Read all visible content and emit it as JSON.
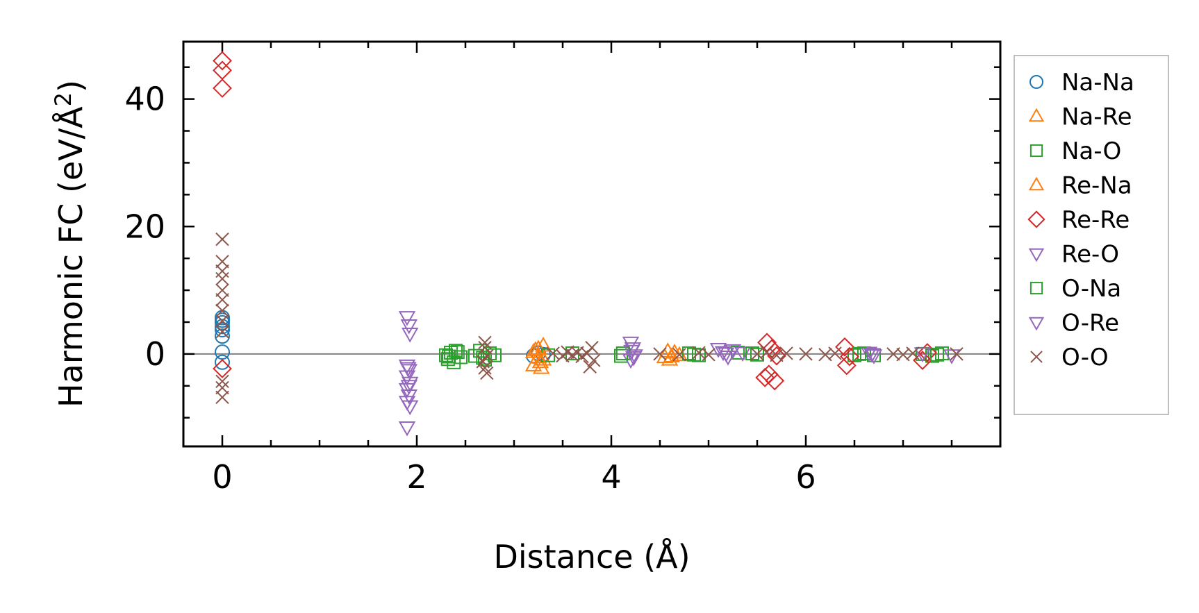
{
  "chart_data": {
    "type": "scatter",
    "xlabel": "Distance (Å)",
    "ylabel_main": "Harmonic FC (eV/Å",
    "ylabel_sup": "2",
    "ylabel_close": ")",
    "xlim": [
      -0.4,
      8.0
    ],
    "ylim": [
      -14.5,
      49.0
    ],
    "xticks": [
      0,
      2,
      4,
      6
    ],
    "yticks": [
      0,
      20,
      40
    ],
    "xminor_step": 0.5,
    "yminor_step": 5,
    "zero_line": true,
    "grid": false,
    "legend_position": "right-outside",
    "series": [
      {
        "name": "Na-Na",
        "marker": "circle",
        "color": "#1f77b4",
        "points": [
          [
            0,
            -1.3
          ],
          [
            0,
            0.3
          ],
          [
            0,
            2.8
          ],
          [
            0,
            3.8
          ],
          [
            0,
            4.3
          ],
          [
            0,
            4.9
          ],
          [
            0,
            5.3
          ],
          [
            0,
            5.7
          ],
          [
            3.2,
            -0.3
          ],
          [
            3.25,
            0.1
          ],
          [
            3.3,
            -0.1
          ]
        ]
      },
      {
        "name": "Na-Re",
        "marker": "triangle-up",
        "color": "#ff7f0e",
        "points": [
          [
            3.2,
            0.3
          ],
          [
            3.25,
            -0.5
          ],
          [
            3.25,
            0.8
          ],
          [
            3.3,
            -0.9
          ],
          [
            3.3,
            1.3
          ],
          [
            3.2,
            -1.8
          ],
          [
            3.28,
            -2.2
          ],
          [
            4.55,
            -0.5
          ],
          [
            4.6,
            -0.9
          ],
          [
            4.65,
            0.2
          ],
          [
            4.7,
            -0.2
          ]
        ]
      },
      {
        "name": "Na-O",
        "marker": "square",
        "color": "#2ca02c",
        "points": [
          [
            2.3,
            -0.2
          ],
          [
            2.32,
            -0.8
          ],
          [
            2.35,
            0.2
          ],
          [
            2.38,
            -1.3
          ],
          [
            2.4,
            0.5
          ],
          [
            2.45,
            -0.5
          ],
          [
            2.6,
            -0.3
          ],
          [
            2.65,
            0.5
          ],
          [
            2.7,
            -0.9
          ],
          [
            2.75,
            0.1
          ],
          [
            2.8,
            -0.2
          ],
          [
            3.35,
            -0.2
          ],
          [
            3.6,
            0.1
          ],
          [
            4.1,
            -0.3
          ],
          [
            4.8,
            0.1
          ],
          [
            4.9,
            -0.2
          ],
          [
            5.3,
            0.2
          ],
          [
            5.5,
            -0.1
          ],
          [
            6.5,
            -0.2
          ],
          [
            6.6,
            0.1
          ],
          [
            6.7,
            -0.2
          ],
          [
            7.2,
            0.0
          ],
          [
            7.3,
            -0.3
          ],
          [
            7.4,
            0.1
          ]
        ]
      },
      {
        "name": "Re-Na",
        "marker": "triangle-up",
        "color": "#ff7f0e",
        "points": [
          [
            3.22,
            0.6
          ],
          [
            3.27,
            -1.3
          ],
          [
            4.58,
            0.4
          ],
          [
            4.62,
            -0.4
          ]
        ]
      },
      {
        "name": "Re-Re",
        "marker": "diamond",
        "color": "#d62728",
        "points": [
          [
            0,
            46.0
          ],
          [
            0,
            44.5
          ],
          [
            0,
            41.7
          ],
          [
            0,
            -2.3
          ],
          [
            5.6,
            1.8
          ],
          [
            5.65,
            0.8
          ],
          [
            5.7,
            -0.3
          ],
          [
            5.62,
            -3.2
          ],
          [
            5.68,
            -4.2
          ],
          [
            5.58,
            -3.7
          ],
          [
            6.4,
            1.1
          ],
          [
            6.42,
            -1.8
          ],
          [
            6.45,
            -0.4
          ],
          [
            7.2,
            -1.0
          ],
          [
            7.25,
            0.2
          ]
        ]
      },
      {
        "name": "Re-O",
        "marker": "triangle-down",
        "color": "#9467bd",
        "points": [
          [
            1.9,
            5.8
          ],
          [
            1.92,
            4.5
          ],
          [
            1.93,
            3.2
          ],
          [
            1.9,
            -1.8
          ],
          [
            1.92,
            -2.5
          ],
          [
            1.9,
            -3.5
          ],
          [
            1.93,
            -4.5
          ],
          [
            1.9,
            -5.5
          ],
          [
            1.92,
            -6.5
          ],
          [
            1.9,
            -7.5
          ],
          [
            1.93,
            -8.2
          ],
          [
            1.9,
            -11.5
          ],
          [
            4.2,
            1.8
          ],
          [
            4.22,
            0.9
          ],
          [
            4.24,
            -0.2
          ],
          [
            4.2,
            -0.9
          ],
          [
            5.1,
            0.8
          ],
          [
            5.15,
            0.3
          ],
          [
            5.2,
            -0.4
          ],
          [
            5.25,
            0.6
          ],
          [
            5.35,
            0.2
          ],
          [
            6.65,
            0.2
          ],
          [
            6.7,
            -0.2
          ],
          [
            7.2,
            0.1
          ],
          [
            7.5,
            -0.2
          ]
        ]
      },
      {
        "name": "O-Na",
        "marker": "square",
        "color": "#2ca02c",
        "points": [
          [
            2.33,
            -0.4
          ],
          [
            2.42,
            0.3
          ],
          [
            2.68,
            -0.6
          ],
          [
            4.12,
            0.1
          ],
          [
            4.85,
            -0.1
          ],
          [
            5.45,
            0.1
          ],
          [
            6.55,
            0.0
          ],
          [
            7.35,
            -0.1
          ]
        ]
      },
      {
        "name": "O-Re",
        "marker": "triangle-down",
        "color": "#9467bd",
        "points": [
          [
            1.91,
            -2.2
          ],
          [
            1.92,
            -5.0
          ],
          [
            4.21,
            0.5
          ],
          [
            4.23,
            -0.5
          ],
          [
            5.18,
            0.1
          ],
          [
            6.68,
            0.0
          ]
        ]
      },
      {
        "name": "O-O",
        "marker": "x",
        "color": "#8c564b",
        "points": [
          [
            0,
            18.0
          ],
          [
            0,
            14.5
          ],
          [
            0,
            13.0
          ],
          [
            0,
            11.8
          ],
          [
            0,
            10.0
          ],
          [
            0,
            8.5
          ],
          [
            0,
            6.8
          ],
          [
            0,
            5.2
          ],
          [
            0,
            3.5
          ],
          [
            0,
            -4.3
          ],
          [
            0,
            -5.3
          ],
          [
            0,
            -6.8
          ],
          [
            2.7,
            1.8
          ],
          [
            2.7,
            1.0
          ],
          [
            2.72,
            -0.3
          ],
          [
            2.68,
            -1.2
          ],
          [
            2.7,
            -2.2
          ],
          [
            2.72,
            -3.0
          ],
          [
            3.4,
            0.1
          ],
          [
            3.5,
            -0.3
          ],
          [
            3.55,
            0.3
          ],
          [
            3.6,
            -0.2
          ],
          [
            3.65,
            0.2
          ],
          [
            3.7,
            -0.4
          ],
          [
            3.75,
            0.1
          ],
          [
            3.8,
            1.0
          ],
          [
            3.82,
            -1.0
          ],
          [
            3.78,
            -2.0
          ],
          [
            4.5,
            0.0
          ],
          [
            4.7,
            -0.1
          ],
          [
            4.9,
            0.2
          ],
          [
            5.0,
            -0.1
          ],
          [
            5.5,
            0.0
          ],
          [
            5.6,
            0.3
          ],
          [
            5.7,
            -0.2
          ],
          [
            5.8,
            0.1
          ],
          [
            6.0,
            0.0
          ],
          [
            6.2,
            -0.1
          ],
          [
            6.3,
            0.1
          ],
          [
            6.9,
            0.0
          ],
          [
            7.0,
            -0.1
          ],
          [
            7.1,
            0.1
          ],
          [
            7.55,
            0.0
          ]
        ]
      }
    ]
  }
}
